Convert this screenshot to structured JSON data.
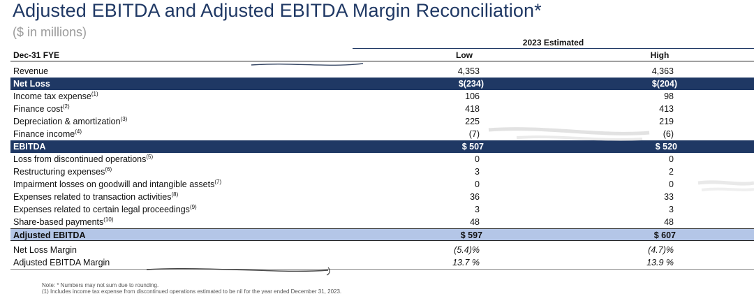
{
  "title": "Adjusted EBITDA and Adjusted EBITDA Margin Reconciliation*",
  "subtitle": "($ in millions)",
  "group_header": "2023 Estimated",
  "columns": {
    "label": "Dec-31 FYE",
    "low": "Low",
    "high": "High"
  },
  "rows": [
    {
      "label": "Revenue",
      "note": "",
      "low": "4,353",
      "high": "4,363",
      "style": "plain"
    },
    {
      "label": "Net Loss",
      "note": "",
      "low": "$(234)",
      "high": "$(204)",
      "style": "dark"
    },
    {
      "label": "Income tax expense",
      "note": "(1)",
      "low": "106",
      "high": "98",
      "style": "plain"
    },
    {
      "label": "Finance cost",
      "note": "(2)",
      "low": "418",
      "high": "413",
      "style": "plain"
    },
    {
      "label": "Depreciation & amortization",
      "note": "(3)",
      "low": "225",
      "high": "219",
      "style": "plain"
    },
    {
      "label": "Finance income",
      "note": "(4)",
      "low": "(7)",
      "high": "(6)",
      "style": "plain"
    },
    {
      "label": "EBITDA",
      "note": "",
      "low": "$ 507",
      "high": "$ 520",
      "style": "dark"
    },
    {
      "label": "Loss from discontinued operations",
      "note": "(5)",
      "low": "0",
      "high": "0",
      "style": "plain"
    },
    {
      "label": "Restructuring expenses",
      "note": "(6)",
      "low": "3",
      "high": "2",
      "style": "plain"
    },
    {
      "label": "Impairment losses on goodwill and intangible assets",
      "note": "(7)",
      "low": "0",
      "high": "0",
      "style": "plain"
    },
    {
      "label": "Expenses related to transaction activities",
      "note": "(8)",
      "low": "36",
      "high": "33",
      "style": "plain"
    },
    {
      "label": "Expenses related to certain legal proceedings",
      "note": "(9)",
      "low": "3",
      "high": "3",
      "style": "plain"
    },
    {
      "label": "Share-based payments",
      "note": "(10)",
      "low": "48",
      "high": "48",
      "style": "plain"
    },
    {
      "label": "Adjusted EBITDA",
      "note": "",
      "low": "$ 597",
      "high": "$ 607",
      "style": "light"
    }
  ],
  "margins": [
    {
      "label": "Net Loss Margin",
      "low": "(5.4)%",
      "high": "(4.7)%"
    },
    {
      "label": "Adjusted EBITDA Margin",
      "low": "13.7 %",
      "high": "13.9 %"
    }
  ],
  "notes": {
    "line1": "Note: * Numbers may not sum due to rounding.",
    "line2": "(1)     Includes income tax expense from discontinued operations estimated to be nil for the year ended December 31, 2023."
  },
  "colors": {
    "title": "#1f3864",
    "dark_band": "#1f3864",
    "light_band": "#b4c6e7"
  }
}
